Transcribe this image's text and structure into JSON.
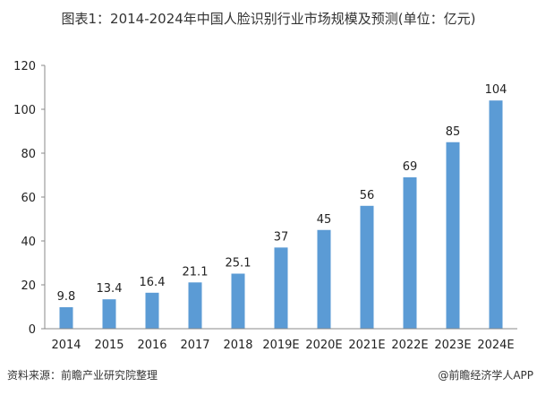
{
  "chart_data": {
    "type": "bar",
    "title": "图表1：2014-2024年中国人脸识别行业市场规模及预测(单位：亿元)",
    "categories": [
      "2014",
      "2015",
      "2016",
      "2017",
      "2018",
      "2019E",
      "2020E",
      "2021E",
      "2022E",
      "2023E",
      "2024E"
    ],
    "values": [
      9.8,
      13.4,
      16.4,
      21.1,
      25.1,
      37,
      45,
      56,
      69,
      85,
      104
    ],
    "data_labels": [
      "9.8",
      "13.4",
      "16.4",
      "21.1",
      "25.1",
      "37",
      "45",
      "56",
      "69",
      "85",
      "104"
    ],
    "xlabel": "",
    "ylabel": "",
    "ylim": [
      0,
      120
    ],
    "yticks": [
      0,
      20,
      40,
      60,
      80,
      100,
      120
    ],
    "grid": false,
    "bar_color": "#5B9BD5"
  },
  "footer": {
    "source": "资料来源：前瞻产业研究院整理",
    "credit": "@前瞻经济学人APP"
  }
}
